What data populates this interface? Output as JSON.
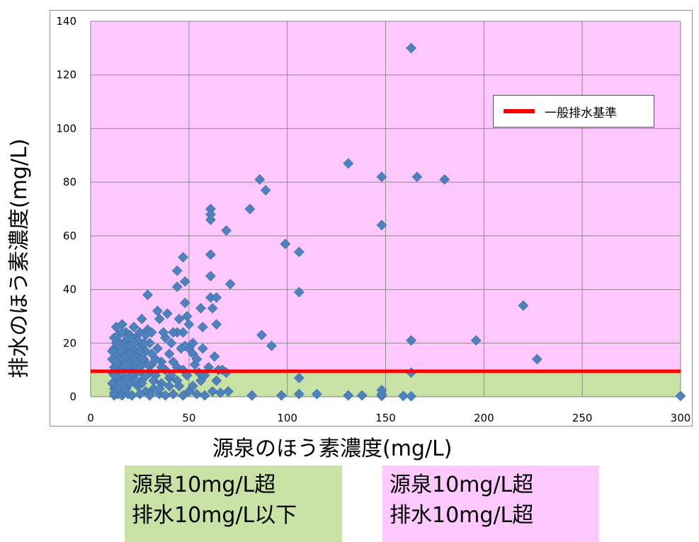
{
  "chart_data": {
    "type": "scatter",
    "title": "",
    "xlabel": "源泉のほう素濃度(mg/L)",
    "ylabel": "排水のほう素濃度(mg/L)",
    "xlim": [
      0,
      300
    ],
    "ylim": [
      0,
      140
    ],
    "x_ticks": [
      "0",
      "50",
      "100",
      "150",
      "200",
      "250",
      "300"
    ],
    "y_ticks": [
      "0",
      "20",
      "40",
      "60",
      "80",
      "100",
      "120",
      "140"
    ],
    "grid": true,
    "legend": {
      "position": "top-right",
      "entries": [
        "一般排水基準"
      ]
    },
    "reference_line": {
      "name": "一般排水基準",
      "y": 9.5,
      "color": "#ff0000"
    },
    "regions": [
      {
        "y_range": [
          0,
          9.5
        ],
        "color": "#c8e3a5"
      },
      {
        "y_range": [
          9.5,
          140
        ],
        "color": "#ffc8ff"
      }
    ],
    "marker_color": "#4f81bd",
    "series": [
      {
        "points": [
          [
            163,
            130
          ],
          [
            131,
            87
          ],
          [
            148,
            82
          ],
          [
            166,
            82
          ],
          [
            180,
            81
          ],
          [
            86,
            81
          ],
          [
            89,
            77
          ],
          [
            81,
            70
          ],
          [
            61,
            70
          ],
          [
            61,
            68
          ],
          [
            61,
            66
          ],
          [
            69,
            62
          ],
          [
            148,
            64
          ],
          [
            99,
            57
          ],
          [
            106,
            54
          ],
          [
            47,
            52
          ],
          [
            61,
            53
          ],
          [
            61,
            45
          ],
          [
            44,
            47
          ],
          [
            71,
            42
          ],
          [
            48,
            43
          ],
          [
            106,
            39
          ],
          [
            44,
            41
          ],
          [
            61,
            37
          ],
          [
            64,
            37
          ],
          [
            62,
            33
          ],
          [
            56,
            33
          ],
          [
            29,
            38
          ],
          [
            48,
            35
          ],
          [
            39,
            31
          ],
          [
            45,
            29
          ],
          [
            220,
            34
          ],
          [
            87,
            23
          ],
          [
            92,
            19
          ],
          [
            64,
            27
          ],
          [
            49,
            30
          ],
          [
            50,
            27
          ],
          [
            47,
            24
          ],
          [
            44,
            24
          ],
          [
            38,
            22
          ],
          [
            163,
            21
          ],
          [
            196,
            21
          ],
          [
            227,
            14
          ],
          [
            26,
            29
          ],
          [
            34,
            32
          ],
          [
            35,
            29
          ],
          [
            29,
            25
          ],
          [
            25,
            24
          ],
          [
            22,
            26
          ],
          [
            13,
            26
          ],
          [
            16,
            27
          ],
          [
            18,
            24
          ],
          [
            20,
            23
          ],
          [
            23,
            22
          ],
          [
            30,
            20
          ],
          [
            41,
            20
          ],
          [
            57,
            18
          ],
          [
            50,
            18
          ],
          [
            48,
            19
          ],
          [
            52,
            16
          ],
          [
            40,
            16
          ],
          [
            36,
            13
          ],
          [
            60,
            11
          ],
          [
            67,
            10
          ],
          [
            69,
            9
          ],
          [
            163,
            9
          ],
          [
            106,
            7
          ],
          [
            44,
            11
          ],
          [
            31,
            12
          ],
          [
            27,
            14
          ],
          [
            24,
            13
          ],
          [
            21,
            12
          ],
          [
            19,
            11
          ],
          [
            15,
            10
          ],
          [
            14,
            12
          ],
          [
            13,
            15
          ],
          [
            12,
            18
          ],
          [
            15,
            20
          ],
          [
            18,
            21
          ],
          [
            28,
            17
          ],
          [
            26,
            9
          ],
          [
            22,
            8
          ],
          [
            17,
            7
          ],
          [
            13,
            6
          ],
          [
            12,
            3
          ],
          [
            15,
            2
          ],
          [
            18,
            3
          ],
          [
            20,
            5
          ],
          [
            24,
            4
          ],
          [
            28,
            2
          ],
          [
            32,
            3
          ],
          [
            36,
            5
          ],
          [
            40,
            7
          ],
          [
            45,
            4
          ],
          [
            50,
            2
          ],
          [
            56,
            6
          ],
          [
            62,
            2
          ],
          [
            66,
            1.5
          ],
          [
            70,
            2
          ],
          [
            82,
            0.5
          ],
          [
            97,
            0.5
          ],
          [
            106,
            1
          ],
          [
            115,
            1
          ],
          [
            131,
            0.5
          ],
          [
            138,
            0.5
          ],
          [
            148,
            0.3
          ],
          [
            148,
            1
          ],
          [
            148,
            2.5
          ],
          [
            159,
            0.3
          ],
          [
            163,
            0.2
          ],
          [
            300,
            0.3
          ],
          [
            12,
            0.5
          ],
          [
            14,
            1
          ],
          [
            16,
            0.5
          ],
          [
            19,
            1
          ],
          [
            21,
            0.5
          ],
          [
            25,
            1
          ],
          [
            30,
            0.5
          ],
          [
            35,
            1
          ],
          [
            38,
            0.5
          ],
          [
            42,
            1
          ],
          [
            47,
            0.5
          ],
          [
            54,
            1
          ],
          [
            58,
            0.5
          ],
          [
            14,
            8
          ],
          [
            16,
            14
          ],
          [
            19,
            16
          ],
          [
            23,
            17
          ],
          [
            26,
            19
          ],
          [
            12,
            11
          ],
          [
            13,
            20
          ],
          [
            17,
            17
          ],
          [
            20,
            14
          ],
          [
            22,
            10
          ],
          [
            25,
            11
          ],
          [
            27,
            7
          ],
          [
            30,
            9
          ],
          [
            33,
            8
          ],
          [
            11,
            9
          ],
          [
            11,
            5
          ],
          [
            11,
            14
          ],
          [
            12,
            22
          ],
          [
            14,
            23
          ],
          [
            17,
            19
          ],
          [
            21,
            18
          ],
          [
            24,
            15
          ],
          [
            27,
            20
          ],
          [
            31,
            16
          ],
          [
            34,
            18
          ],
          [
            38,
            10
          ],
          [
            42,
            13
          ],
          [
            12,
            1.5
          ],
          [
            13,
            4
          ],
          [
            15,
            5
          ],
          [
            17,
            3
          ],
          [
            19,
            7
          ],
          [
            21,
            9
          ],
          [
            23,
            6
          ],
          [
            26,
            5
          ],
          [
            28,
            8
          ],
          [
            32,
            6
          ],
          [
            35,
            3
          ],
          [
            13,
            13
          ],
          [
            15,
            17
          ],
          [
            18,
            15
          ],
          [
            20,
            19
          ],
          [
            24,
            21
          ],
          [
            28,
            23
          ],
          [
            31,
            24
          ],
          [
            16,
            24
          ],
          [
            19,
            22
          ],
          [
            22,
            20
          ],
          [
            25,
            17
          ],
          [
            11,
            17
          ],
          [
            12,
            8
          ],
          [
            14,
            3
          ],
          [
            16,
            9
          ],
          [
            18,
            12
          ],
          [
            20,
            16
          ],
          [
            23,
            13
          ],
          [
            26,
            14
          ],
          [
            29,
            12
          ],
          [
            33,
            14
          ],
          [
            36,
            11
          ],
          [
            41,
            8
          ],
          [
            47,
            10
          ],
          [
            53,
            12
          ],
          [
            58,
            8
          ],
          [
            64,
            6
          ],
          [
            37,
            24
          ],
          [
            42,
            24
          ],
          [
            46,
            18
          ],
          [
            52,
            20
          ],
          [
            54,
            14
          ],
          [
            57,
            26
          ],
          [
            63,
            15
          ],
          [
            65,
            10
          ],
          [
            49,
            8
          ],
          [
            44,
            6
          ],
          [
            40,
            4
          ],
          [
            52,
            4
          ],
          [
            55,
            9
          ]
        ]
      }
    ]
  },
  "annotations": {
    "green_box": {
      "line1": "源泉10mg/L超",
      "line2": "排水10mg/L以下",
      "color": "#c8e3a5"
    },
    "pink_box": {
      "line1": "源泉10mg/L超",
      "line2": "排水10mg/L超",
      "color": "#ffc8ff"
    }
  }
}
